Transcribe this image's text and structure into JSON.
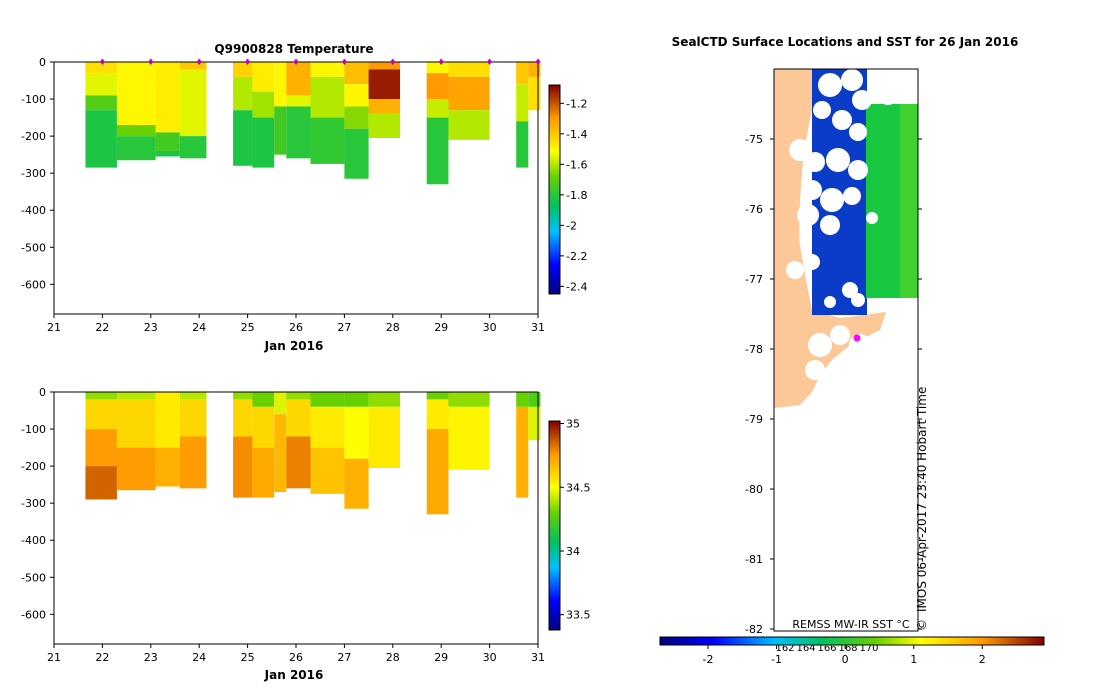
{
  "charts": {
    "temperature": {
      "title": "Q9900828  Temperature",
      "xlabel": "Jan 2016",
      "x_ticks": [
        "21",
        "22",
        "23",
        "24",
        "25",
        "26",
        "27",
        "28",
        "29",
        "30",
        "31"
      ],
      "y_ticks": [
        "0",
        "-100",
        "-200",
        "-300",
        "-400",
        "-500",
        "-600"
      ],
      "colorbar_ticks": [
        "-1.2",
        "-1.4",
        "-1.6",
        "-1.8",
        "-2",
        "-2.2",
        "-2.4"
      ]
    },
    "salinity": {
      "title": "",
      "xlabel": "Jan 2016",
      "x_ticks": [
        "21",
        "22",
        "23",
        "24",
        "25",
        "26",
        "27",
        "28",
        "29",
        "30",
        "31"
      ],
      "y_ticks": [
        "0",
        "-100",
        "-200",
        "-300",
        "-400",
        "-500",
        "-600"
      ],
      "colorbar_ticks": [
        "35",
        "34.5",
        "34",
        "33.5"
      ]
    },
    "map": {
      "title": "SealCTD Surface Locations and SST for 26 Jan 2016",
      "lat_ticks": [
        "-75",
        "-76",
        "-77",
        "-78",
        "-79",
        "-80",
        "-81",
        "-82"
      ],
      "lon_ticks": [
        "162",
        "164",
        "166",
        "168",
        "170"
      ],
      "sst_label": "REMSS MW-IR SST °C",
      "credit": "IMOS 06-Apr-2017 23:40 Hobart Time",
      "copyright_symbol": "©",
      "sst_ticks": [
        "-2",
        "-1",
        "0",
        "1",
        "2"
      ]
    }
  },
  "chart_data": [
    {
      "type": "heatmap",
      "title": "Q9900828  Temperature",
      "xlabel": "Jan 2016",
      "ylabel": "",
      "xlim": [
        21,
        31
      ],
      "ylim": [
        -680,
        0
      ],
      "colorbar_range": [
        -2.45,
        -1.08
      ],
      "profile_markers_x": [
        22,
        23,
        24,
        25,
        26,
        27,
        28,
        29,
        30,
        31
      ],
      "columns": [
        {
          "x0": 21.65,
          "x1": 22.3,
          "bottom": -285,
          "bands": [
            [
              0,
              -30,
              -1.45
            ],
            [
              -30,
              -90,
              -1.55
            ],
            [
              -90,
              -130,
              -1.72
            ],
            [
              -130,
              -285,
              -1.82
            ]
          ]
        },
        {
          "x0": 22.3,
          "x1": 23.1,
          "bottom": -265,
          "bands": [
            [
              0,
              -170,
              -1.5
            ],
            [
              -170,
              -200,
              -1.68
            ],
            [
              -200,
              -265,
              -1.8
            ]
          ]
        },
        {
          "x0": 23.1,
          "x1": 23.6,
          "bottom": -255,
          "bands": [
            [
              0,
              -190,
              -1.48
            ],
            [
              -190,
              -240,
              -1.75
            ],
            [
              -240,
              -255,
              -1.82
            ]
          ]
        },
        {
          "x0": 23.6,
          "x1": 24.15,
          "bottom": -260,
          "bands": [
            [
              0,
              -20,
              -1.4
            ],
            [
              -20,
              -200,
              -1.55
            ],
            [
              -200,
              -260,
              -1.8
            ]
          ]
        },
        {
          "x0": 24.7,
          "x1": 25.1,
          "bottom": -280,
          "bands": [
            [
              0,
              -40,
              -1.42
            ],
            [
              -40,
              -130,
              -1.6
            ],
            [
              -130,
              -280,
              -1.82
            ]
          ]
        },
        {
          "x0": 25.1,
          "x1": 25.55,
          "bottom": -285,
          "bands": [
            [
              0,
              -80,
              -1.48
            ],
            [
              -80,
              -150,
              -1.62
            ],
            [
              -150,
              -285,
              -1.82
            ]
          ]
        },
        {
          "x0": 25.55,
          "x1": 25.8,
          "bottom": -250,
          "bands": [
            [
              0,
              -120,
              -1.5
            ],
            [
              -120,
              -250,
              -1.75
            ]
          ]
        },
        {
          "x0": 25.8,
          "x1": 26.3,
          "bottom": -260,
          "bands": [
            [
              0,
              -90,
              -1.35
            ],
            [
              -90,
              -120,
              -1.55
            ],
            [
              -120,
              -260,
              -1.8
            ]
          ]
        },
        {
          "x0": 26.3,
          "x1": 27.0,
          "bottom": -275,
          "bands": [
            [
              0,
              -40,
              -1.5
            ],
            [
              -40,
              -150,
              -1.6
            ],
            [
              -150,
              -275,
              -1.78
            ]
          ]
        },
        {
          "x0": 27.0,
          "x1": 27.5,
          "bottom": -315,
          "bands": [
            [
              0,
              -60,
              -1.38
            ],
            [
              -60,
              -120,
              -1.5
            ],
            [
              -120,
              -180,
              -1.65
            ],
            [
              -180,
              -315,
              -1.8
            ]
          ]
        },
        {
          "x0": 27.5,
          "x1": 28.15,
          "bottom": -205,
          "bands": [
            [
              0,
              -20,
              -1.3
            ],
            [
              -20,
              -100,
              -1.12
            ],
            [
              -100,
              -140,
              -1.35
            ],
            [
              -140,
              -205,
              -1.6
            ]
          ]
        },
        {
          "x0": 28.7,
          "x1": 29.15,
          "bottom": -330,
          "bands": [
            [
              0,
              -30,
              -1.5
            ],
            [
              -30,
              -100,
              -1.3
            ],
            [
              -100,
              -150,
              -1.58
            ],
            [
              -150,
              -330,
              -1.8
            ]
          ]
        },
        {
          "x0": 29.15,
          "x1": 30.0,
          "bottom": -210,
          "bands": [
            [
              0,
              -40,
              -1.45
            ],
            [
              -40,
              -130,
              -1.32
            ],
            [
              -130,
              -210,
              -1.6
            ]
          ]
        },
        {
          "x0": 30.55,
          "x1": 30.8,
          "bottom": -285,
          "bands": [
            [
              0,
              -60,
              -1.4
            ],
            [
              -60,
              -160,
              -1.58
            ],
            [
              -160,
              -285,
              -1.8
            ]
          ]
        },
        {
          "x0": 30.8,
          "x1": 31.05,
          "bottom": -130,
          "bands": [
            [
              0,
              -40,
              -1.35
            ],
            [
              -40,
              -130,
              -1.45
            ]
          ]
        }
      ]
    },
    {
      "type": "heatmap",
      "title": "",
      "xlabel": "Jan 2016",
      "ylabel": "",
      "xlim": [
        21,
        31
      ],
      "ylim": [
        -680,
        0
      ],
      "colorbar_range": [
        33.38,
        35.02
      ],
      "columns": [
        {
          "x0": 21.65,
          "x1": 22.3,
          "bottom": -290,
          "bands": [
            [
              0,
              -20,
              34.35
            ],
            [
              -20,
              -100,
              34.6
            ],
            [
              -100,
              -200,
              34.75
            ],
            [
              -200,
              -290,
              34.85
            ]
          ]
        },
        {
          "x0": 22.3,
          "x1": 23.1,
          "bottom": -265,
          "bands": [
            [
              0,
              -20,
              34.4
            ],
            [
              -20,
              -150,
              34.6
            ],
            [
              -150,
              -265,
              34.75
            ]
          ]
        },
        {
          "x0": 23.1,
          "x1": 23.6,
          "bottom": -255,
          "bands": [
            [
              0,
              -150,
              34.55
            ],
            [
              -150,
              -255,
              34.7
            ]
          ]
        },
        {
          "x0": 23.6,
          "x1": 24.15,
          "bottom": -260,
          "bands": [
            [
              0,
              -20,
              34.4
            ],
            [
              -20,
              -120,
              34.6
            ],
            [
              -120,
              -260,
              34.75
            ]
          ]
        },
        {
          "x0": 24.7,
          "x1": 25.1,
          "bottom": -285,
          "bands": [
            [
              0,
              -20,
              34.35
            ],
            [
              -20,
              -120,
              34.6
            ],
            [
              -120,
              -285,
              34.78
            ]
          ]
        },
        {
          "x0": 25.1,
          "x1": 25.55,
          "bottom": -285,
          "bands": [
            [
              0,
              -40,
              34.3
            ],
            [
              -40,
              -150,
              34.6
            ],
            [
              -150,
              -285,
              34.72
            ]
          ]
        },
        {
          "x0": 25.55,
          "x1": 25.8,
          "bottom": -270,
          "bands": [
            [
              0,
              -60,
              34.45
            ],
            [
              -60,
              -270,
              34.68
            ]
          ]
        },
        {
          "x0": 25.8,
          "x1": 26.3,
          "bottom": -260,
          "bands": [
            [
              0,
              -20,
              34.35
            ],
            [
              -20,
              -120,
              34.6
            ],
            [
              -120,
              -260,
              34.8
            ]
          ]
        },
        {
          "x0": 26.3,
          "x1": 27.0,
          "bottom": -275,
          "bands": [
            [
              0,
              -40,
              34.3
            ],
            [
              -40,
              -150,
              34.55
            ],
            [
              -150,
              -275,
              34.65
            ]
          ]
        },
        {
          "x0": 27.0,
          "x1": 27.5,
          "bottom": -315,
          "bands": [
            [
              0,
              -40,
              34.3
            ],
            [
              -40,
              -180,
              34.5
            ],
            [
              -180,
              -315,
              34.7
            ]
          ]
        },
        {
          "x0": 27.5,
          "x1": 28.15,
          "bottom": -205,
          "bands": [
            [
              0,
              -40,
              34.35
            ],
            [
              -40,
              -205,
              34.55
            ]
          ]
        },
        {
          "x0": 28.7,
          "x1": 29.15,
          "bottom": -330,
          "bands": [
            [
              0,
              -20,
              34.3
            ],
            [
              -20,
              -100,
              34.55
            ],
            [
              -100,
              -330,
              34.72
            ]
          ]
        },
        {
          "x0": 29.15,
          "x1": 30.0,
          "bottom": -210,
          "bands": [
            [
              0,
              -40,
              34.35
            ],
            [
              -40,
              -210,
              34.52
            ]
          ]
        },
        {
          "x0": 30.55,
          "x1": 30.8,
          "bottom": -285,
          "bands": [
            [
              0,
              -40,
              34.3
            ],
            [
              -40,
              -285,
              34.7
            ]
          ]
        },
        {
          "x0": 30.8,
          "x1": 31.05,
          "bottom": -130,
          "bands": [
            [
              0,
              -40,
              34.25
            ],
            [
              -40,
              -130,
              34.45
            ]
          ]
        }
      ]
    },
    {
      "type": "heatmap",
      "title": "SealCTD Surface Locations and SST for 26 Jan 2016",
      "xlabel": "",
      "ylabel": "",
      "lon_range": [
        160.6,
        171.9
      ],
      "lat_range": [
        -82,
        -74
      ],
      "colorbar_range": [
        -2.7,
        2.9
      ],
      "colorbar_label": "REMSS MW-IR SST °C",
      "profile_location": {
        "lon": 166.7,
        "lat": -77.85
      },
      "land_lon_max": 162.6,
      "sst_fields": [
        {
          "lon0": 163.2,
          "lon1": 166.4,
          "lat_top": -74.0,
          "lat_bottom": -77.5,
          "value": -1.85
        },
        {
          "lon0": 166.4,
          "lon1": 170.2,
          "lat_top": -74.5,
          "lat_bottom": -77.2,
          "value": 0.15
        }
      ]
    }
  ]
}
